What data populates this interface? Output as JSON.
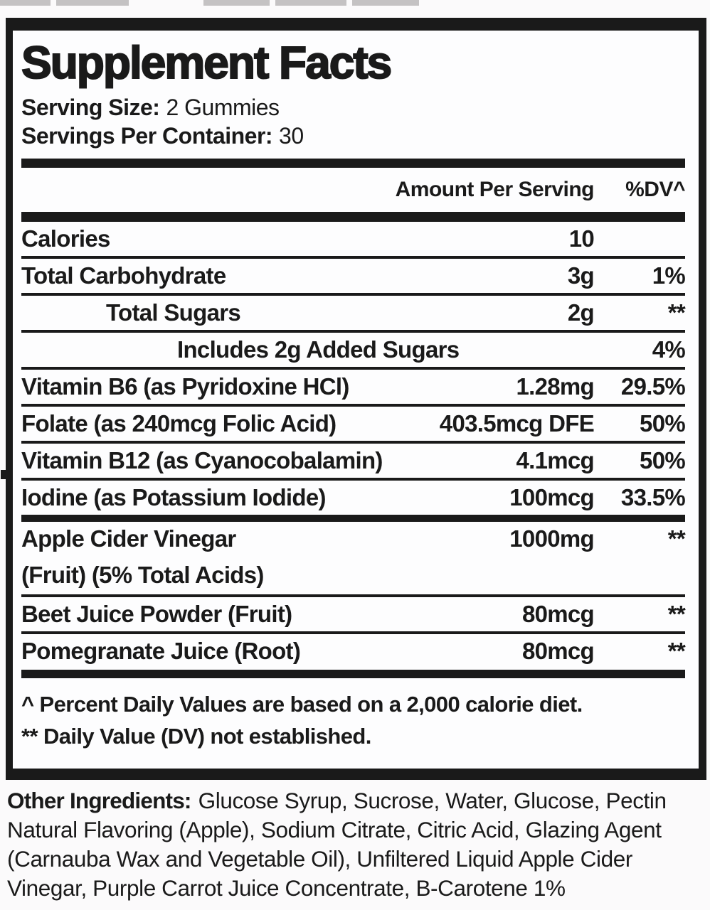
{
  "panel": {
    "title": "Supplement Facts",
    "serving_size_label": "Serving Size:",
    "serving_size_value": "2 Gummies",
    "servings_per_container_label": "Servings Per Container:",
    "servings_per_container_value": "30",
    "columns": {
      "amount": "Amount Per Serving",
      "dv": "%DV^"
    },
    "rows": [
      {
        "name": "Calories",
        "amount": "10",
        "dv": "",
        "indent": 0,
        "sep": "none"
      },
      {
        "name": "Total Carbohydrate",
        "amount": "3g",
        "dv": "1%",
        "indent": 0,
        "sep": "thin"
      },
      {
        "name": "Total Sugars",
        "amount": "2g",
        "dv": "**",
        "indent": 1,
        "sep": "thin"
      },
      {
        "name": "Includes 2g Added Sugars",
        "amount": "",
        "dv": "4%",
        "indent": 2,
        "sep": "thin"
      },
      {
        "name": "Vitamin B6 (as Pyridoxine HCl)",
        "amount": "1.28mg",
        "dv": "29.5%",
        "indent": 0,
        "sep": "thin"
      },
      {
        "name": "Folate (as 240mcg Folic Acid)",
        "amount": "403.5mcg DFE",
        "dv": "50%",
        "indent": 0,
        "sep": "thin"
      },
      {
        "name": "Vitamin B12 (as Cyanocobalamin)",
        "amount": "4.1mcg",
        "dv": "50%",
        "indent": 0,
        "sep": "thin"
      },
      {
        "name": "Iodine (as Potassium Iodide)",
        "amount": "100mcg",
        "dv": "33.5%",
        "indent": 0,
        "sep": "thin"
      },
      {
        "name": "Apple Cider Vinegar",
        "name2": "(Fruit) (5% Total Acids)",
        "amount": "1000mg",
        "dv": "**",
        "indent": 0,
        "sep": "medium"
      },
      {
        "name": "Beet Juice Powder (Fruit)",
        "amount": "80mcg",
        "dv": "**",
        "indent": 0,
        "sep": "thin"
      },
      {
        "name": "Pomegranate Juice (Root)",
        "amount": "80mcg",
        "dv": "**",
        "indent": 0,
        "sep": "thin"
      }
    ],
    "footnotes": [
      "^ Percent Daily Values are based on a 2,000 calorie diet.",
      "** Daily Value (DV) not established."
    ]
  },
  "other_ingredients": {
    "label": "Other Ingredients:",
    "text": "Glucose Syrup, Sucrose, Water, Glucose, Pectin Natural Flavoring (Apple), Sodium Citrate, Citric Acid, Glazing Agent (Carnauba Wax and Vegetable Oil), Unfiltered Liquid Apple Cider Vinegar, Purple Carrot Juice Concentrate, B-Carotene 1%"
  },
  "colors": {
    "ink": "#1a1a1a",
    "page_bg": "#fbfafb",
    "panel_bg": "#fdfdfe",
    "gray_box": "#c4c2c3"
  }
}
